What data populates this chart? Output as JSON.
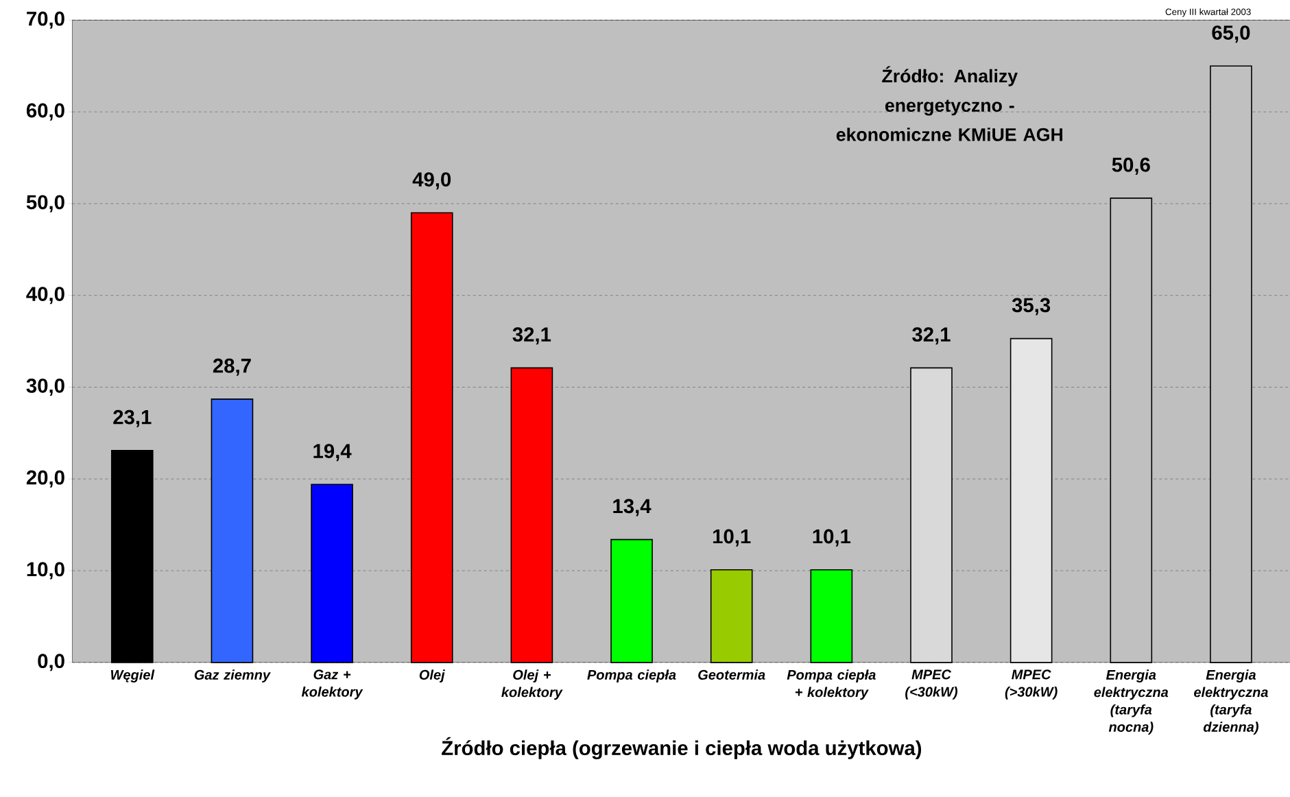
{
  "chart_data": {
    "type": "bar",
    "xlabel": "Źródło ciepła (ogrzewanie i ciepła woda użytkowa)",
    "categories": [
      "Węgiel",
      "Gaz ziemny",
      "Gaz + kolektory",
      "Olej",
      "Olej + kolektory",
      "Pompa ciepła",
      "Geotermia",
      "Pompa ciepła + kolektory",
      "MPEC (<30kW)",
      "MPEC (>30kW)",
      "Energia elektryczna (taryfa nocna)",
      "Energia elektryczna (taryfa dzienna)"
    ],
    "values": [
      23.1,
      28.7,
      19.4,
      49.0,
      32.1,
      13.4,
      10.1,
      10.1,
      32.1,
      35.3,
      50.6,
      65.0
    ],
    "value_labels": [
      "23,1",
      "28,7",
      "19,4",
      "49,0",
      "32,1",
      "13,4",
      "10,1",
      "10,1",
      "32,1",
      "35,3",
      "50,6",
      "65,0"
    ],
    "colors": [
      "#000000",
      "#3366ff",
      "#0000ff",
      "#ff0000",
      "#ff0000",
      "#00ff00",
      "#99cc00",
      "#00ff00",
      "#d9d9d9",
      "#e6e6e6",
      "#c0c0c0",
      "#c0c0c0"
    ],
    "ylim": [
      0,
      70
    ],
    "yticks": [
      {
        "value": 0,
        "label": "0,0"
      },
      {
        "value": 10,
        "label": "10,0"
      },
      {
        "value": 20,
        "label": "20,0"
      },
      {
        "value": 30,
        "label": "30,0"
      },
      {
        "value": 40,
        "label": "40,0"
      },
      {
        "value": 50,
        "label": "50,0"
      },
      {
        "value": 60,
        "label": "60,0"
      },
      {
        "value": 70,
        "label": "70,0"
      }
    ],
    "grid": "y",
    "annotations": [
      "Ceny III kwartał 2003",
      "Źródło: Analizy energetyczno - ekonomiczne KMiUE AGH"
    ]
  }
}
